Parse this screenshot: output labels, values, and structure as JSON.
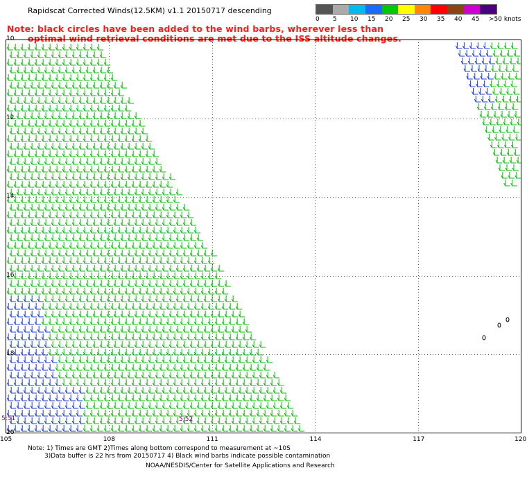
{
  "title": "Rapidscat Corrected Winds(12.5KM) v1.1 20150717 descending",
  "note_line1": "Note: black circles have been added to the wind barbs, wherever less than",
  "note_line2": "optimal wind retrieval conditions are met due to the ISS altitude changes.",
  "legend": {
    "labels": [
      "0",
      "5",
      "10",
      "15",
      "20",
      "25",
      "30",
      "35",
      "40",
      "45",
      ">50 knots"
    ],
    "colors": [
      "#555555",
      "#aaaaaa",
      "#00bbee",
      "#1a6cff",
      "#00c800",
      "#ffff00",
      "#ff8800",
      "#ff0000",
      "#8b4513",
      "#d000d0",
      "#4b0082"
    ]
  },
  "y_ticks": [
    "10",
    "12",
    "14",
    "16",
    "18",
    "20"
  ],
  "x_ticks": [
    "105",
    "108",
    "111",
    "114",
    "117",
    "120"
  ],
  "time_labels": [
    "5:51",
    "5:52"
  ],
  "footer": {
    "line1": "Note: 1) Times are GMT 2)Times along bottom correspond to measurement at ~10S",
    "line2": "3)Data buffer is 22 hrs from 20150717 4) Black wind barbs indicate possible contamination",
    "line3": "NOAA/NESDIS/Center for Satellite Applications and Research"
  }
}
